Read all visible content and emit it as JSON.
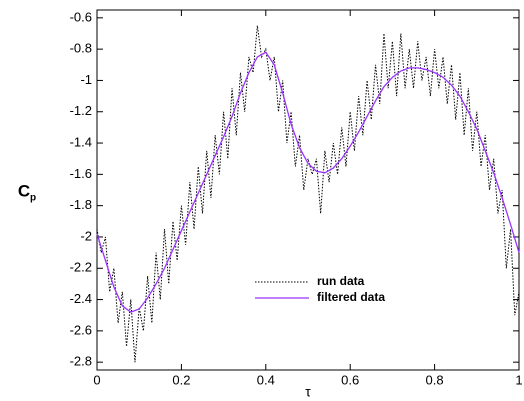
{
  "chart_data": {
    "type": "line",
    "xlabel": "τ",
    "ylabel": "C",
    "ylabel_subscript": "p",
    "xlim": [
      0,
      1
    ],
    "ylim": [
      -2.85,
      -0.55
    ],
    "xticks": [
      0,
      0.2,
      0.4,
      0.6,
      0.8,
      1
    ],
    "yticks": [
      -0.6,
      -0.8,
      -1,
      -1.2,
      -1.4,
      -1.6,
      -1.8,
      -2,
      -2.2,
      -2.4,
      -2.6,
      -2.8
    ],
    "grid": false,
    "legend": "lower-center",
    "series": [
      {
        "name": "run data",
        "color": "#000000",
        "dash": "dotted",
        "x": [
          0,
          0.01,
          0.02,
          0.03,
          0.04,
          0.05,
          0.06,
          0.07,
          0.08,
          0.09,
          0.1,
          0.11,
          0.12,
          0.13,
          0.14,
          0.15,
          0.16,
          0.17,
          0.18,
          0.19,
          0.2,
          0.21,
          0.22,
          0.23,
          0.24,
          0.25,
          0.26,
          0.27,
          0.28,
          0.29,
          0.3,
          0.31,
          0.32,
          0.33,
          0.34,
          0.35,
          0.36,
          0.37,
          0.38,
          0.39,
          0.4,
          0.41,
          0.42,
          0.43,
          0.44,
          0.45,
          0.46,
          0.47,
          0.48,
          0.49,
          0.5,
          0.51,
          0.52,
          0.53,
          0.54,
          0.55,
          0.56,
          0.57,
          0.58,
          0.59,
          0.6,
          0.61,
          0.62,
          0.63,
          0.64,
          0.65,
          0.66,
          0.67,
          0.68,
          0.69,
          0.7,
          0.71,
          0.72,
          0.73,
          0.74,
          0.75,
          0.76,
          0.77,
          0.78,
          0.79,
          0.8,
          0.81,
          0.82,
          0.83,
          0.84,
          0.85,
          0.86,
          0.87,
          0.88,
          0.89,
          0.9,
          0.91,
          0.92,
          0.93,
          0.94,
          0.95,
          0.96,
          0.97,
          0.98,
          0.99,
          1
        ],
        "values": [
          -1.95,
          -2.1,
          -2.0,
          -2.35,
          -2.2,
          -2.55,
          -2.35,
          -2.7,
          -2.4,
          -2.8,
          -2.45,
          -2.6,
          -2.25,
          -2.55,
          -2.1,
          -2.4,
          -1.95,
          -2.3,
          -1.9,
          -2.15,
          -1.8,
          -2.05,
          -1.65,
          -1.95,
          -1.55,
          -1.85,
          -1.45,
          -1.75,
          -1.35,
          -1.6,
          -1.2,
          -1.5,
          -1.05,
          -1.35,
          -0.95,
          -1.2,
          -0.85,
          -0.95,
          -0.65,
          -0.85,
          -0.8,
          -1.0,
          -0.85,
          -1.2,
          -1.0,
          -1.4,
          -1.2,
          -1.55,
          -1.35,
          -1.7,
          -1.5,
          -1.6,
          -1.5,
          -1.85,
          -1.45,
          -1.65,
          -1.4,
          -1.6,
          -1.3,
          -1.55,
          -1.2,
          -1.45,
          -1.1,
          -1.35,
          -1.0,
          -1.25,
          -0.9,
          -1.15,
          -0.7,
          -1.05,
          -0.75,
          -1.1,
          -0.7,
          -1.05,
          -0.8,
          -1.05,
          -0.75,
          -1.0,
          -0.85,
          -1.1,
          -0.8,
          -1.05,
          -0.85,
          -1.15,
          -0.9,
          -1.25,
          -0.95,
          -1.35,
          -1.05,
          -1.45,
          -1.2,
          -1.55,
          -1.35,
          -1.7,
          -1.5,
          -1.85,
          -1.7,
          -2.2,
          -1.95,
          -2.5,
          -2.35
        ]
      },
      {
        "name": "filtered data",
        "color": "#9933ff",
        "dash": "solid",
        "x": [
          0,
          0.02,
          0.04,
          0.06,
          0.08,
          0.1,
          0.12,
          0.14,
          0.16,
          0.18,
          0.2,
          0.22,
          0.24,
          0.26,
          0.28,
          0.3,
          0.32,
          0.34,
          0.36,
          0.38,
          0.4,
          0.42,
          0.44,
          0.46,
          0.48,
          0.5,
          0.52,
          0.54,
          0.56,
          0.58,
          0.6,
          0.62,
          0.64,
          0.66,
          0.68,
          0.7,
          0.72,
          0.74,
          0.76,
          0.78,
          0.8,
          0.82,
          0.84,
          0.86,
          0.88,
          0.9,
          0.92,
          0.94,
          0.96,
          0.98,
          1
        ],
        "values": [
          -1.98,
          -2.15,
          -2.32,
          -2.44,
          -2.48,
          -2.46,
          -2.39,
          -2.3,
          -2.2,
          -2.08,
          -1.96,
          -1.84,
          -1.72,
          -1.6,
          -1.48,
          -1.36,
          -1.23,
          -1.08,
          -0.95,
          -0.85,
          -0.82,
          -0.9,
          -1.08,
          -1.28,
          -1.43,
          -1.53,
          -1.58,
          -1.59,
          -1.56,
          -1.5,
          -1.42,
          -1.33,
          -1.23,
          -1.13,
          -1.04,
          -0.98,
          -0.94,
          -0.92,
          -0.92,
          -0.93,
          -0.95,
          -0.98,
          -1.03,
          -1.1,
          -1.2,
          -1.31,
          -1.45,
          -1.59,
          -1.75,
          -1.92,
          -2.1
        ]
      }
    ]
  }
}
